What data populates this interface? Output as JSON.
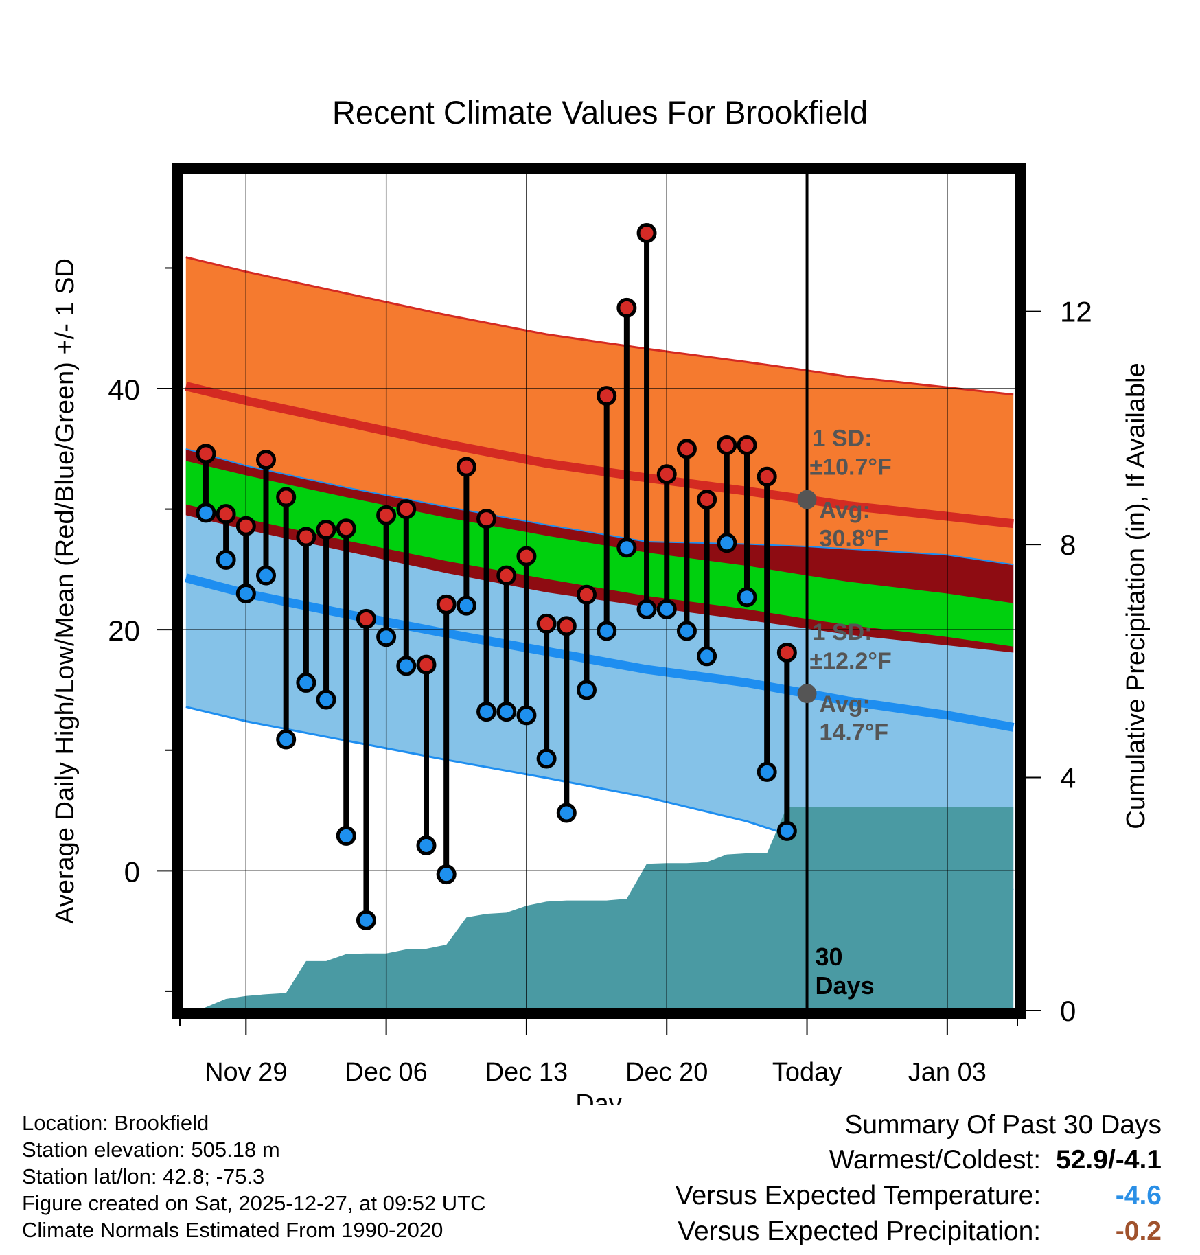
{
  "chart_data": {
    "type": "line",
    "title": "Recent Climate Values For Brookfield",
    "xlabel": "Day",
    "ylabel": "Average Daily High/Low/Mean (Red/Blue/Green) +/- 1 SD",
    "y2label": "Cumulative Precipitation (in), If Available",
    "xlim": [
      -3.3,
      38.5
    ],
    "ylim": [
      -11.6,
      58
    ],
    "y2lim": [
      0,
      14.4
    ],
    "x_ticks": [
      {
        "x": 0,
        "label": "Nov 29"
      },
      {
        "x": 7,
        "label": "Dec 06"
      },
      {
        "x": 14,
        "label": "Dec 13"
      },
      {
        "x": 21,
        "label": "Dec 20"
      },
      {
        "x": 28,
        "label": "Today"
      },
      {
        "x": 35,
        "label": "Jan 03"
      }
    ],
    "x_minor_ticks": [
      -3.3,
      38.5
    ],
    "y_ticks": [
      0,
      20,
      40
    ],
    "y_minor_ticks": [
      -10,
      10,
      30,
      50
    ],
    "y2_ticks": [
      0,
      4,
      8,
      12
    ],
    "grid": true,
    "today_x": 28,
    "normals": {
      "x": [
        -3,
        0,
        5,
        10,
        15,
        20,
        25,
        28,
        30,
        35,
        38.3
      ],
      "high_mean": [
        40.2,
        39.0,
        37.2,
        35.4,
        33.8,
        32.6,
        31.5,
        30.8,
        30.3,
        29.4,
        28.8
      ],
      "high_sd": [
        10.7,
        10.7,
        10.7,
        10.7,
        10.7,
        10.7,
        10.7,
        10.7,
        10.7,
        10.7,
        10.7
      ],
      "low_mean": [
        24.3,
        23.0,
        21.3,
        19.7,
        18.2,
        16.7,
        15.6,
        14.7,
        14.1,
        12.9,
        11.9
      ],
      "low_sd": [
        10.7,
        10.6,
        10.5,
        10.5,
        10.5,
        10.6,
        11.5,
        12.2,
        12.6,
        13.3,
        13.5
      ],
      "mean": [
        32.2,
        31.0,
        29.2,
        27.5,
        26.0,
        24.6,
        23.5,
        22.7,
        22.2,
        21.2,
        20.4
      ],
      "mean_sd": [
        1.8,
        1.8,
        1.8,
        1.8,
        1.8,
        1.8,
        1.8,
        1.8,
        1.8,
        1.8,
        1.8
      ]
    },
    "daily": {
      "x": [
        -2,
        -1,
        0,
        1,
        2,
        3,
        4,
        5,
        6,
        7,
        8,
        9,
        10,
        11,
        12,
        13,
        14,
        15,
        16,
        17,
        18,
        19,
        20,
        21,
        22,
        23,
        24,
        25,
        26,
        27
      ],
      "high": [
        34.6,
        29.6,
        28.6,
        34.1,
        31.0,
        27.7,
        28.3,
        28.4,
        20.9,
        29.5,
        30.0,
        17.1,
        22.1,
        33.5,
        29.2,
        24.5,
        26.1,
        20.5,
        20.3,
        22.9,
        39.4,
        46.7,
        52.9,
        32.9,
        35.0,
        30.8,
        35.3,
        35.3,
        32.7,
        18.1
      ],
      "low": [
        29.7,
        25.8,
        23.0,
        24.5,
        10.9,
        15.6,
        14.2,
        2.9,
        -4.1,
        19.4,
        17.0,
        2.1,
        -0.3,
        22.0,
        13.2,
        13.2,
        12.9,
        9.3,
        4.8,
        15.0,
        19.9,
        26.8,
        21.7,
        21.7,
        19.9,
        17.8,
        27.2,
        22.7,
        8.2,
        3.3
      ]
    },
    "precip": {
      "x": [
        -2.4,
        -1,
        0,
        1,
        2,
        3,
        4,
        5,
        6,
        7,
        8,
        9,
        10,
        11,
        12,
        13,
        14,
        15,
        16,
        17,
        18,
        19,
        20,
        21,
        22,
        23,
        24,
        25,
        26,
        27,
        28,
        38.3
      ],
      "values": [
        0,
        0.2,
        0.25,
        0.28,
        0.3,
        0.85,
        0.85,
        0.97,
        0.98,
        0.98,
        1.05,
        1.06,
        1.13,
        1.6,
        1.66,
        1.68,
        1.8,
        1.87,
        1.89,
        1.89,
        1.89,
        1.92,
        2.52,
        2.53,
        2.53,
        2.55,
        2.68,
        2.7,
        2.7,
        3.5,
        3.5,
        3.5
      ]
    },
    "annotations": {
      "high_sd_label": "1 SD:",
      "high_sd_value": "±10.7°F",
      "high_avg_label": "Avg:",
      "high_avg_value": "30.8°F",
      "high_avg": 30.8,
      "low_sd_label": "1 SD:",
      "low_sd_value": "±12.2°F",
      "low_avg_label": "Avg:",
      "low_avg_value": "14.7°F",
      "low_avg": 14.7,
      "days_label_1": "30",
      "days_label_2": "Days"
    },
    "colors": {
      "high_band": "#f57a2f",
      "high_line": "#d42a22",
      "low_band": "#85c2e8",
      "low_line": "#1e8ef0",
      "mean_band": "#8e0c12",
      "mean_line": "#00d00e",
      "precip_fill": "#4a9aa3",
      "high_dot": "#d52b26",
      "low_dot": "#1e90ee",
      "annotation": "#555555"
    }
  },
  "footer": {
    "location": "Location: Brookfield",
    "elevation": "Station elevation: 505.18 m",
    "latlon": "Station lat/lon: 42.8; -75.3",
    "created": "Figure created on Sat, 2025-12-27, at 09:52 UTC",
    "normals": "Climate Normals Estimated From 1990-2020"
  },
  "summary": {
    "title": "Summary Of Past 30 Days",
    "warm_cold_label": "Warmest/Coldest:",
    "warm_cold_value": "52.9/-4.1",
    "temp_label": "Versus Expected Temperature:",
    "temp_value": "-4.6",
    "temp_color": "#2a8fe6",
    "precip_label": "Versus Expected Precipitation:",
    "precip_value": "-0.2",
    "precip_color": "#a0522d"
  }
}
